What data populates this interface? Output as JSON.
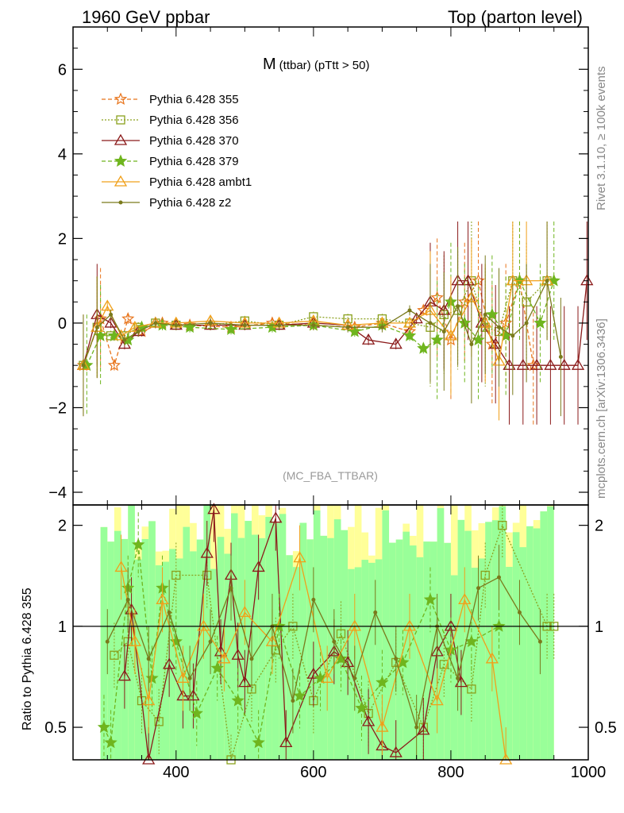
{
  "header": {
    "left": "1960 GeV ppbar",
    "right": "Top (parton level)"
  },
  "side_labels": {
    "rivet": "Rivet 3.1.10, ≥ 100k events",
    "mcplots": "mcplots.cern.ch [arXiv:1306.3436]"
  },
  "chart_data": [
    {
      "type": "line",
      "title_main": "M",
      "title_sub": "(ttbar) (pTtt > 50)",
      "watermark": "(MC_FBA_TTBAR)",
      "xlim": [
        250,
        1000
      ],
      "ylim": [
        -4.3,
        7.0
      ],
      "y_ticks": [
        -4,
        -2,
        0,
        2,
        4,
        6
      ],
      "x_ticks": [
        400,
        600,
        800,
        1000
      ],
      "legend_position": "top-left",
      "series": [
        {
          "name": "Pythia 6.428 355",
          "color": "#e8741b",
          "marker": "star-open",
          "dash": "5,3",
          "x": [
            265,
            290,
            310,
            330,
            350,
            380,
            420,
            480,
            540,
            600,
            660,
            700,
            740,
            760,
            780,
            800,
            820,
            840,
            860,
            880,
            900,
            920
          ],
          "y": [
            -1.0,
            0.1,
            -1.0,
            0.1,
            -0.2,
            0.0,
            -0.05,
            -0.1,
            0.0,
            -0.05,
            -0.1,
            0.0,
            -0.2,
            0.3,
            0.6,
            -0.4,
            0.5,
            1.0,
            -0.5,
            0.0,
            1.0,
            -1.0
          ]
        },
        {
          "name": "Pythia 6.428 356",
          "color": "#8aa01c",
          "marker": "square-open",
          "dash": "2,2",
          "x": [
            265,
            285,
            305,
            325,
            345,
            370,
            400,
            450,
            500,
            550,
            600,
            650,
            700,
            740,
            770,
            790,
            810,
            830,
            850,
            870,
            890,
            910,
            940
          ],
          "y": [
            -1.0,
            -0.1,
            -0.3,
            -0.3,
            -0.1,
            0.0,
            -0.05,
            -0.05,
            0.05,
            -0.05,
            0.15,
            0.1,
            0.1,
            0.0,
            -0.1,
            0.2,
            0.3,
            1.0,
            -0.1,
            -0.2,
            1.0,
            0.5,
            1.0
          ]
        },
        {
          "name": "Pythia 6.428 370",
          "color": "#8b1a1a",
          "marker": "triangle-open",
          "dash": "",
          "x": [
            265,
            285,
            305,
            325,
            345,
            370,
            400,
            450,
            500,
            550,
            600,
            650,
            680,
            720,
            750,
            770,
            790,
            810,
            825,
            845,
            865,
            885,
            905,
            925,
            945,
            965,
            985,
            998
          ],
          "y": [
            -1.0,
            0.2,
            0.0,
            -0.5,
            -0.2,
            0.0,
            -0.05,
            -0.05,
            -0.05,
            -0.05,
            0.0,
            -0.05,
            -0.4,
            -0.5,
            0.1,
            0.5,
            0.3,
            1.0,
            1.0,
            0.0,
            -0.5,
            -1.0,
            -1.0,
            -1.0,
            -1.0,
            -1.0,
            -1.0,
            1.0
          ]
        },
        {
          "name": "Pythia 6.428 379",
          "color": "#6fb51e",
          "marker": "star-filled",
          "dash": "5,3",
          "x": [
            270,
            290,
            310,
            330,
            350,
            380,
            420,
            480,
            540,
            600,
            660,
            700,
            740,
            760,
            780,
            800,
            820,
            840,
            860,
            880,
            900,
            930,
            950
          ],
          "y": [
            -1.0,
            -0.3,
            -0.3,
            -0.4,
            -0.1,
            -0.05,
            -0.1,
            -0.15,
            -0.1,
            -0.05,
            -0.2,
            -0.05,
            -0.3,
            -0.6,
            -0.4,
            0.5,
            0.0,
            -0.4,
            0.2,
            -0.3,
            1.0,
            0.0,
            1.0
          ]
        },
        {
          "name": "Pythia 6.428 ambt1",
          "color": "#f0a01a",
          "marker": "triangle-open",
          "dash": "",
          "x": [
            265,
            285,
            300,
            320,
            340,
            370,
            400,
            450,
            500,
            550,
            600,
            650,
            700,
            740,
            770,
            800,
            830,
            850,
            870,
            890,
            910,
            940
          ],
          "y": [
            -1.0,
            -0.1,
            0.4,
            -0.3,
            -0.1,
            0.0,
            0.0,
            0.05,
            0.0,
            0.0,
            0.05,
            -0.05,
            0.0,
            0.0,
            0.3,
            -0.3,
            0.6,
            0.0,
            -0.9,
            1.0,
            1.0,
            1.0
          ]
        },
        {
          "name": "Pythia 6.428 z2",
          "color": "#7a7a1c",
          "marker": "dot",
          "dash": "",
          "x": [
            265,
            285,
            305,
            325,
            345,
            370,
            400,
            450,
            500,
            550,
            600,
            650,
            700,
            740,
            770,
            790,
            810,
            830,
            850,
            870,
            890,
            910,
            940,
            960
          ],
          "y": [
            -1.0,
            -0.1,
            0.2,
            -0.4,
            -0.2,
            0.0,
            -0.05,
            0.0,
            -0.05,
            -0.05,
            -0.05,
            -0.1,
            -0.1,
            0.3,
            0.0,
            -0.2,
            0.4,
            -0.5,
            0.2,
            -0.1,
            -0.3,
            0.0,
            1.0,
            -0.8
          ]
        }
      ]
    },
    {
      "type": "line",
      "ylabel": "Ratio to Pythia 6.428 355",
      "xlim": [
        250,
        1000
      ],
      "ylim": [
        0.4,
        2.3
      ],
      "y_scale": "log",
      "y_ticks": [
        0.5,
        1,
        2
      ],
      "reference_line": 1,
      "x_ticks": [
        400,
        600,
        800,
        1000
      ],
      "band_colors": {
        "outer": "#ffff99",
        "inner": "#99ff99"
      },
      "series": [
        {
          "name": "Pythia 6.428 356",
          "color": "#8aa01c",
          "marker": "square-open",
          "x": [
            310,
            330,
            350,
            375,
            400,
            445,
            480,
            510,
            545,
            570,
            600,
            640,
            680,
            720,
            760,
            790,
            830,
            850,
            875,
            940,
            950
          ],
          "y": [
            0.82,
            0.9,
            0.6,
            0.52,
            1.42,
            1.42,
            0.38,
            0.65,
            0.85,
            1.0,
            0.6,
            0.95,
            0.55,
            0.78,
            0.5,
            0.77,
            0.65,
            1.42,
            2.0,
            1.0,
            1.0
          ]
        },
        {
          "name": "Pythia 6.428 370",
          "color": "#8b1a1a",
          "marker": "triangle-open",
          "x": [
            325,
            335,
            360,
            390,
            410,
            425,
            445,
            455,
            465,
            480,
            490,
            500,
            520,
            545,
            560,
            600,
            630,
            650,
            680,
            700,
            720,
            760,
            780,
            800,
            815
          ],
          "y": [
            0.71,
            1.12,
            0.4,
            0.77,
            0.62,
            0.62,
            1.65,
            2.23,
            0.84,
            1.42,
            0.82,
            0.68,
            1.5,
            2.1,
            0.45,
            0.72,
            0.84,
            0.78,
            0.52,
            0.44,
            0.42,
            0.49,
            0.84,
            1.0,
            0.68
          ]
        },
        {
          "name": "Pythia 6.428 379",
          "color": "#6fb51e",
          "marker": "star-filled",
          "x": [
            295,
            305,
            330,
            345,
            365,
            380,
            400,
            430,
            460,
            490,
            520,
            550,
            580,
            610,
            640,
            670,
            700,
            730,
            770,
            800,
            830,
            870
          ],
          "y": [
            0.5,
            0.45,
            1.3,
            1.75,
            0.7,
            1.3,
            0.9,
            0.55,
            0.75,
            0.6,
            0.45,
            1.0,
            0.62,
            0.7,
            0.8,
            0.57,
            0.68,
            0.78,
            1.2,
            0.85,
            0.9,
            1.0
          ]
        },
        {
          "name": "Pythia 6.428 ambt1",
          "color": "#f0a01a",
          "marker": "triangle-open",
          "x": [
            320,
            340,
            360,
            380,
            410,
            440,
            470,
            500,
            540,
            580,
            620,
            660,
            700,
            740,
            780,
            820,
            860,
            880
          ],
          "y": [
            1.5,
            0.9,
            0.6,
            1.2,
            0.7,
            1.0,
            0.8,
            1.1,
            0.9,
            1.6,
            0.7,
            1.0,
            0.5,
            1.0,
            0.6,
            1.2,
            0.8,
            0.4
          ]
        },
        {
          "name": "Pythia 6.428 z2",
          "color": "#7a7a1c",
          "marker": "dot",
          "x": [
            300,
            330,
            360,
            390,
            420,
            450,
            480,
            510,
            540,
            570,
            600,
            630,
            660,
            690,
            720,
            750,
            780,
            810,
            840,
            870,
            900,
            930
          ],
          "y": [
            0.9,
            1.2,
            0.8,
            1.1,
            0.7,
            0.9,
            1.3,
            0.8,
            1.0,
            0.6,
            1.2,
            0.9,
            0.7,
            1.1,
            0.8,
            0.5,
            1.0,
            0.7,
            1.3,
            1.4,
            1.1,
            0.9
          ]
        }
      ]
    }
  ]
}
